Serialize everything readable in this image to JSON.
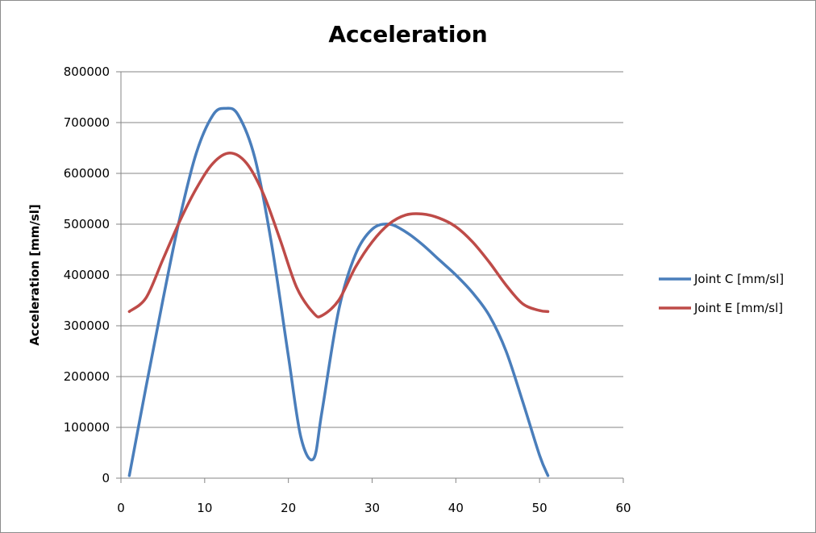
{
  "chart_data": {
    "type": "line",
    "title": "Acceleration",
    "xlabel": "",
    "ylabel": "Acceleration [mm/sl]",
    "xlim": [
      0,
      60
    ],
    "ylim": [
      0,
      800000
    ],
    "x_ticks": [
      0,
      10,
      20,
      30,
      40,
      50,
      60
    ],
    "y_ticks": [
      0,
      100000,
      200000,
      300000,
      400000,
      500000,
      600000,
      700000,
      800000
    ],
    "grid": "horizontal",
    "smooth": true,
    "legend_position": "right",
    "series": [
      {
        "name": "Joint C [mm/sl]",
        "color": "#4a7ebb",
        "x": [
          1,
          3,
          5,
          7,
          9,
          11,
          12.5,
          14,
          16,
          18,
          20,
          21.5,
          23,
          24,
          26,
          28,
          30,
          32,
          34,
          36,
          38,
          40,
          42,
          44,
          46,
          48,
          50,
          51
        ],
        "y": [
          5000,
          180000,
          350000,
          510000,
          640000,
          715000,
          728000,
          715000,
          630000,
          460000,
          240000,
          80000,
          38000,
          130000,
          330000,
          440000,
          490000,
          500000,
          485000,
          460000,
          430000,
          400000,
          365000,
          320000,
          250000,
          150000,
          45000,
          5000
        ]
      },
      {
        "name": "Joint E [mm/sl]",
        "color": "#be4b48",
        "x": [
          1,
          3,
          5,
          7,
          9,
          11,
          13,
          15,
          17,
          19,
          21,
          23,
          24,
          26,
          28,
          30,
          32,
          34,
          36,
          38,
          40,
          42,
          44,
          46,
          48,
          50,
          51
        ],
        "y": [
          328000,
          355000,
          430000,
          505000,
          570000,
          620000,
          640000,
          620000,
          560000,
          470000,
          375000,
          325000,
          320000,
          350000,
          415000,
          465000,
          500000,
          518000,
          520000,
          512000,
          495000,
          465000,
          425000,
          380000,
          343000,
          330000,
          328000
        ]
      }
    ]
  }
}
